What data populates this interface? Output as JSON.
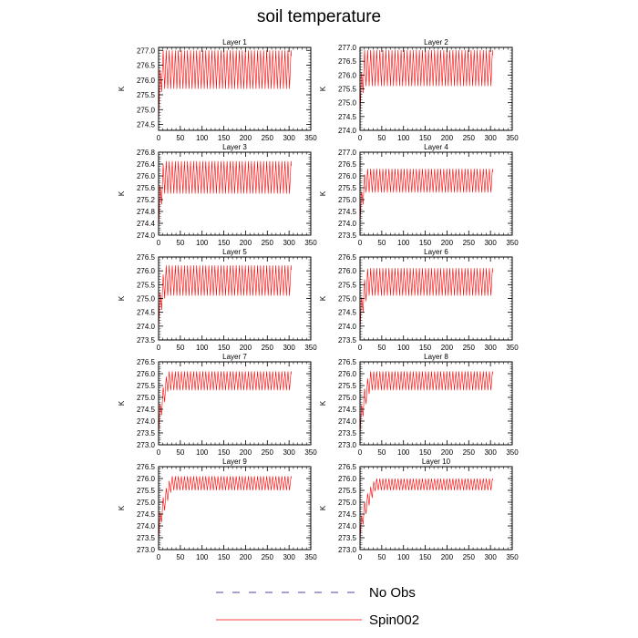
{
  "title": "soil temperature",
  "colors": {
    "spin": "#ff0000",
    "noobs": "#4a4aa8",
    "axis": "#000000"
  },
  "legend": [
    {
      "label": "No Obs",
      "style": "dashed",
      "color": "#4a4aa8"
    },
    {
      "label": "Spin002",
      "style": "solid",
      "color": "#ff0000"
    }
  ],
  "chart_data": [
    {
      "type": "line",
      "title": "Layer 1",
      "ylabel": "K",
      "xlim": [
        0,
        350
      ],
      "xticks": [
        0,
        50,
        100,
        150,
        200,
        250,
        300,
        350
      ],
      "ylim": [
        274.3,
        277.1
      ],
      "yticks": [
        "274.5",
        "275.0",
        "275.5",
        "276.0",
        "276.5",
        "277.0"
      ],
      "series": [
        {
          "name": "Spin002",
          "x_end": 305,
          "period": 7,
          "start": 274.4,
          "upper": 277.0,
          "lower": 275.7,
          "ramp": 8
        }
      ]
    },
    {
      "type": "line",
      "title": "Layer 2",
      "ylabel": "K",
      "xlim": [
        0,
        350
      ],
      "xticks": [
        0,
        50,
        100,
        150,
        200,
        250,
        300,
        350
      ],
      "ylim": [
        274.0,
        277.0
      ],
      "yticks": [
        "274.0",
        "274.5",
        "275.0",
        "275.5",
        "276.0",
        "276.5",
        "277.0"
      ],
      "series": [
        {
          "name": "Spin002",
          "x_end": 305,
          "period": 7,
          "start": 274.3,
          "upper": 276.9,
          "lower": 275.6,
          "ramp": 10
        }
      ]
    },
    {
      "type": "line",
      "title": "Layer 3",
      "ylabel": "K",
      "xlim": [
        0,
        350
      ],
      "xticks": [
        0,
        50,
        100,
        150,
        200,
        250,
        300,
        350
      ],
      "ylim": [
        274.0,
        276.8
      ],
      "yticks": [
        "274.0",
        "274.4",
        "274.8",
        "275.2",
        "275.6",
        "276.0",
        "276.4",
        "276.8"
      ],
      "series": [
        {
          "name": "Spin002",
          "x_end": 305,
          "period": 7,
          "start": 274.1,
          "upper": 276.5,
          "lower": 275.4,
          "ramp": 12
        }
      ]
    },
    {
      "type": "line",
      "title": "Layer 4",
      "ylabel": "K",
      "xlim": [
        0,
        350
      ],
      "xticks": [
        0,
        50,
        100,
        150,
        200,
        250,
        300,
        350
      ],
      "ylim": [
        273.5,
        277.0
      ],
      "yticks": [
        "273.5",
        "274.0",
        "274.5",
        "275.0",
        "275.5",
        "276.0",
        "276.5",
        "277.0"
      ],
      "series": [
        {
          "name": "Spin002",
          "x_end": 305,
          "period": 7,
          "start": 273.8,
          "upper": 276.3,
          "lower": 275.3,
          "ramp": 14
        }
      ]
    },
    {
      "type": "line",
      "title": "Layer 5",
      "ylabel": "K",
      "xlim": [
        0,
        350
      ],
      "xticks": [
        0,
        50,
        100,
        150,
        200,
        250,
        300,
        350
      ],
      "ylim": [
        273.5,
        276.5
      ],
      "yticks": [
        "273.5",
        "274.0",
        "274.5",
        "275.0",
        "275.5",
        "276.0",
        "276.5"
      ],
      "series": [
        {
          "name": "Spin002",
          "x_end": 305,
          "period": 7,
          "start": 273.8,
          "upper": 276.2,
          "lower": 275.1,
          "ramp": 16
        }
      ]
    },
    {
      "type": "line",
      "title": "Layer 6",
      "ylabel": "K",
      "xlim": [
        0,
        350
      ],
      "xticks": [
        0,
        50,
        100,
        150,
        200,
        250,
        300,
        350
      ],
      "ylim": [
        273.5,
        276.5
      ],
      "yticks": [
        "273.5",
        "274.0",
        "274.5",
        "275.0",
        "275.5",
        "276.0",
        "276.5"
      ],
      "series": [
        {
          "name": "Spin002",
          "x_end": 305,
          "period": 7,
          "start": 273.7,
          "upper": 276.1,
          "lower": 275.1,
          "ramp": 18
        }
      ]
    },
    {
      "type": "line",
      "title": "Layer 7",
      "ylabel": "K",
      "xlim": [
        0,
        350
      ],
      "xticks": [
        0,
        50,
        100,
        150,
        200,
        250,
        300,
        350
      ],
      "ylim": [
        273.0,
        276.5
      ],
      "yticks": [
        "273.0",
        "273.5",
        "274.0",
        "274.5",
        "275.0",
        "275.5",
        "276.0",
        "276.5"
      ],
      "series": [
        {
          "name": "Spin002",
          "x_end": 305,
          "period": 7,
          "start": 273.2,
          "upper": 276.1,
          "lower": 275.3,
          "ramp": 22
        }
      ]
    },
    {
      "type": "line",
      "title": "Layer 8",
      "ylabel": "K",
      "xlim": [
        0,
        350
      ],
      "xticks": [
        0,
        50,
        100,
        150,
        200,
        250,
        300,
        350
      ],
      "ylim": [
        273.0,
        276.5
      ],
      "yticks": [
        "273.0",
        "273.5",
        "274.0",
        "274.5",
        "275.0",
        "275.5",
        "276.0",
        "276.5"
      ],
      "series": [
        {
          "name": "Spin002",
          "x_end": 305,
          "period": 7,
          "start": 273.2,
          "upper": 276.1,
          "lower": 275.3,
          "ramp": 24
        }
      ]
    },
    {
      "type": "line",
      "title": "Layer 9",
      "ylabel": "K",
      "xlim": [
        0,
        350
      ],
      "xticks": [
        0,
        50,
        100,
        150,
        200,
        250,
        300,
        350
      ],
      "ylim": [
        273.0,
        276.5
      ],
      "yticks": [
        "273.0",
        "273.5",
        "274.0",
        "274.5",
        "275.0",
        "275.5",
        "276.0",
        "276.5"
      ],
      "series": [
        {
          "name": "Spin002",
          "x_end": 305,
          "period": 7,
          "start": 273.2,
          "upper": 276.1,
          "lower": 275.5,
          "ramp": 30
        }
      ]
    },
    {
      "type": "line",
      "title": "Layer 10",
      "ylabel": "K",
      "xlim": [
        0,
        350
      ],
      "xticks": [
        0,
        50,
        100,
        150,
        200,
        250,
        300,
        350
      ],
      "ylim": [
        273.0,
        276.5
      ],
      "yticks": [
        "273.0",
        "273.5",
        "274.0",
        "274.5",
        "275.0",
        "275.5",
        "276.0",
        "276.5"
      ],
      "series": [
        {
          "name": "Spin002",
          "x_end": 305,
          "period": 7,
          "start": 273.2,
          "upper": 276.0,
          "lower": 275.5,
          "ramp": 36
        }
      ]
    }
  ]
}
